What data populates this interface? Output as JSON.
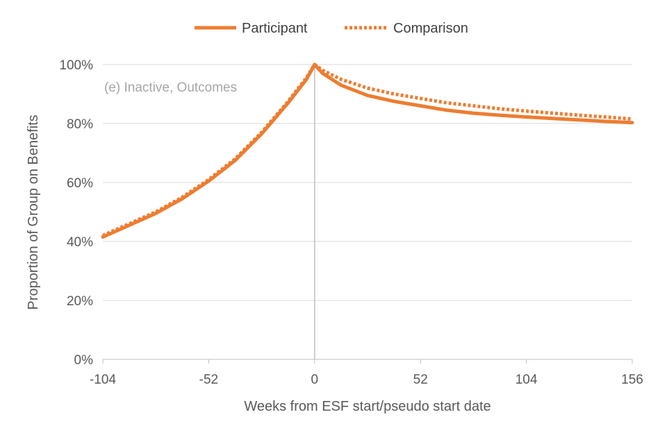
{
  "chart_data": {
    "type": "line",
    "annotation": "(e) Inactive, Outcomes",
    "xlabel": "Weeks from ESF start/pseudo start date",
    "ylabel": "Proportion of Group on Benefits",
    "xlim": [
      -104,
      156
    ],
    "ylim": [
      0,
      100
    ],
    "x_ticks": [
      -104,
      -52,
      0,
      52,
      104,
      156
    ],
    "x_tick_labels": [
      "-104",
      "-52",
      "0",
      "52",
      "104",
      "156"
    ],
    "y_ticks": [
      0,
      20,
      40,
      60,
      80,
      100
    ],
    "y_tick_labels": [
      "0%",
      "20%",
      "40%",
      "60%",
      "80%",
      "100%"
    ],
    "grid": "horizontal",
    "reference_line_x": 0,
    "legend_position": "top",
    "series": [
      {
        "name": "Participant",
        "style": "solid",
        "color": "#ed7d31",
        "x": [
          -104,
          -91,
          -78,
          -65,
          -52,
          -39,
          -26,
          -13,
          -4,
          0,
          4,
          13,
          26,
          39,
          52,
          65,
          78,
          91,
          104,
          117,
          130,
          143,
          156
        ],
        "y": [
          41.5,
          45.5,
          49.5,
          54.5,
          60.5,
          67.5,
          76.5,
          87,
          95,
          100,
          97,
          93,
          89.5,
          87.5,
          86,
          84.5,
          83.5,
          82.8,
          82.2,
          81.7,
          81.2,
          80.7,
          80.3
        ]
      },
      {
        "name": "Comparison",
        "style": "dotted",
        "color": "#ed7d31",
        "x": [
          -104,
          -91,
          -78,
          -65,
          -52,
          -39,
          -26,
          -13,
          -4,
          0,
          4,
          13,
          26,
          39,
          52,
          65,
          78,
          91,
          104,
          117,
          130,
          143,
          156
        ],
        "y": [
          42,
          46,
          50,
          55,
          61,
          68,
          77,
          87.5,
          95.5,
          100,
          98,
          95,
          92,
          90,
          88.5,
          87,
          86,
          85,
          84.2,
          83.5,
          82.8,
          82.2,
          81.5
        ]
      }
    ]
  }
}
